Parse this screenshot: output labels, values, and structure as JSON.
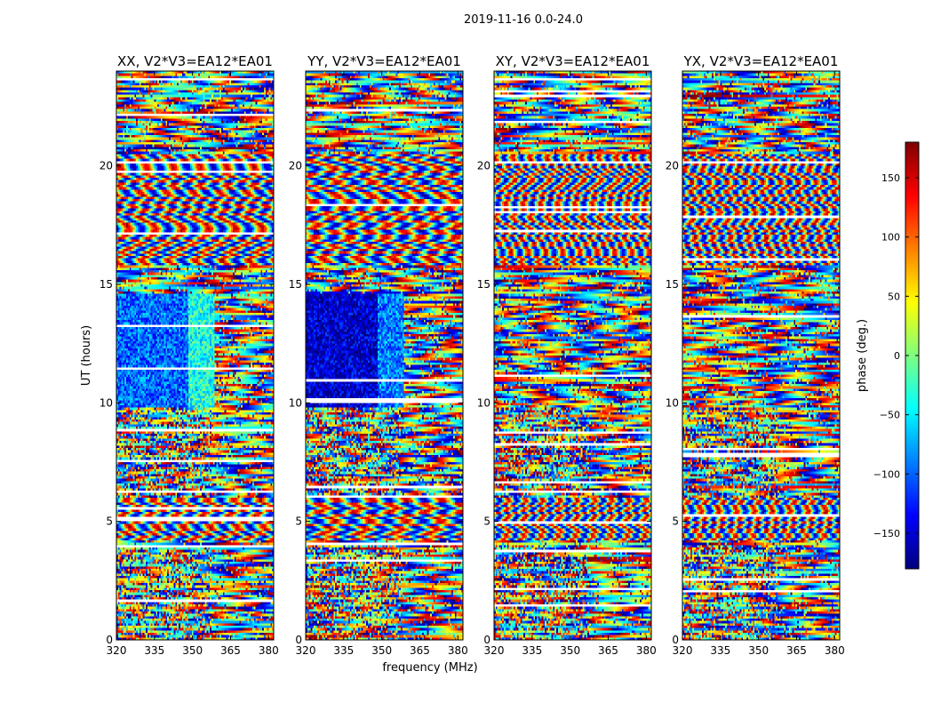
{
  "suptitle": "2019-11-16 0.0-24.0",
  "xlabel": "frequency (MHz)",
  "ylabel": "UT (hours)",
  "colorbar": {
    "label": "phase (deg.)",
    "range": [
      -180,
      180
    ],
    "ticks": [
      -150,
      -100,
      -50,
      0,
      50,
      100,
      150
    ],
    "tick_labels": [
      "−150",
      "−100",
      "−50",
      "0",
      "50",
      "100",
      "150"
    ],
    "colormap": "jet",
    "colors": [
      "#00007f",
      "#0000ff",
      "#007fff",
      "#00ffff",
      "#7fff7f",
      "#ffff00",
      "#ff7f00",
      "#ff0000",
      "#7f0000"
    ]
  },
  "chart_data": [
    {
      "type": "heatmap",
      "title": "XX, V2*V3=EA12*EA01",
      "xlim": [
        320,
        382
      ],
      "ylim": [
        0,
        24
      ],
      "xticks": [
        320,
        335,
        350,
        365,
        380
      ],
      "yticks": [
        0,
        5,
        10,
        15,
        20
      ],
      "value_range": [
        -180,
        180
      ],
      "grid": false
    },
    {
      "type": "heatmap",
      "title": "YY, V2*V3=EA12*EA01",
      "xlim": [
        320,
        382
      ],
      "ylim": [
        0,
        24
      ],
      "xticks": [
        320,
        335,
        350,
        365,
        380
      ],
      "yticks": [
        0,
        5,
        10,
        15,
        20
      ],
      "value_range": [
        -180,
        180
      ],
      "grid": false
    },
    {
      "type": "heatmap",
      "title": "XY, V2*V3=EA12*EA01",
      "xlim": [
        320,
        382
      ],
      "ylim": [
        0,
        24
      ],
      "xticks": [
        320,
        335,
        350,
        365,
        380
      ],
      "yticks": [
        0,
        5,
        10,
        15,
        20
      ],
      "value_range": [
        -180,
        180
      ],
      "grid": false
    },
    {
      "type": "heatmap",
      "title": "YX, V2*V3=EA12*EA01",
      "xlim": [
        320,
        382
      ],
      "ylim": [
        0,
        24
      ],
      "xticks": [
        320,
        335,
        350,
        365,
        380
      ],
      "yticks": [
        0,
        5,
        10,
        15,
        20
      ],
      "value_range": [
        -180,
        180
      ],
      "grid": false
    }
  ]
}
